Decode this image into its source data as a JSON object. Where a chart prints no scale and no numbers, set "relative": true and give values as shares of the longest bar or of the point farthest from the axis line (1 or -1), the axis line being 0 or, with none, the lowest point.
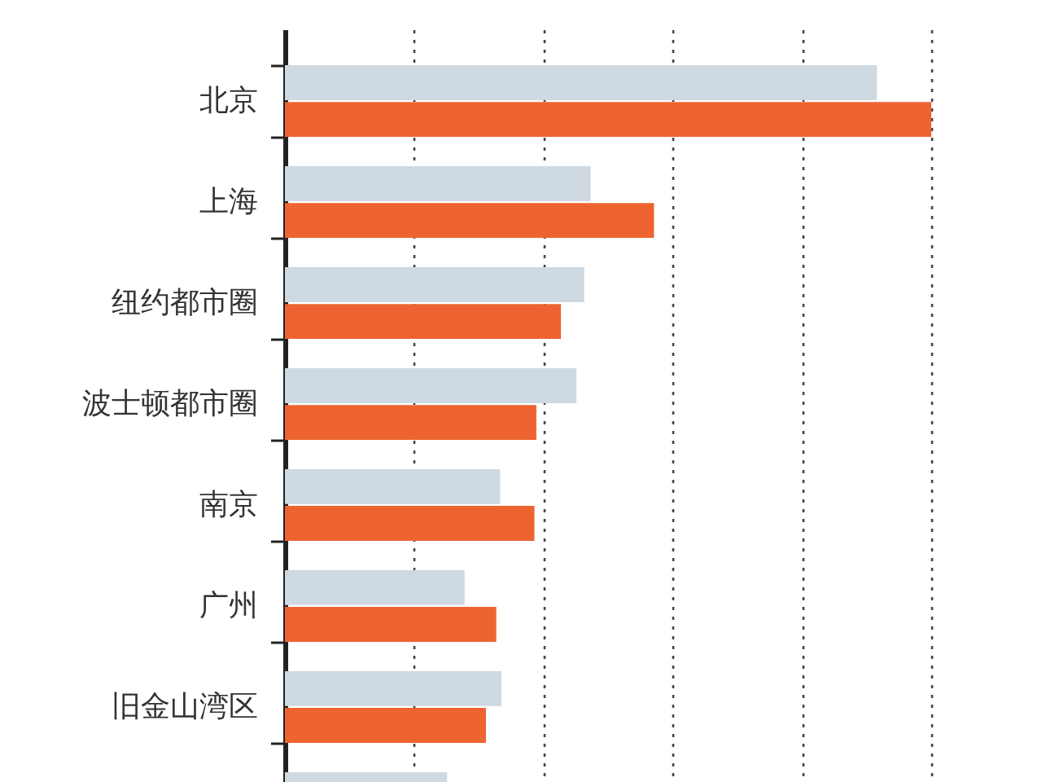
{
  "chart_data": {
    "type": "bar",
    "orientation": "horizontal",
    "relative": true,
    "grid": "x",
    "categories": [
      "北京",
      "上海",
      "纽约都市圈",
      "波士顿都市圈",
      "南京",
      "广州",
      "旧金山湾区",
      null
    ],
    "series": [
      {
        "color": "#cfd9e1",
        "values": [
          0.916,
          0.473,
          0.463,
          0.451,
          0.333,
          0.278,
          0.335,
          0.251
        ]
      },
      {
        "color": "#ee6431",
        "values": [
          1,
          0.571,
          0.427,
          0.389,
          0.386,
          0.327,
          0.311,
          null
        ]
      }
    ]
  }
}
